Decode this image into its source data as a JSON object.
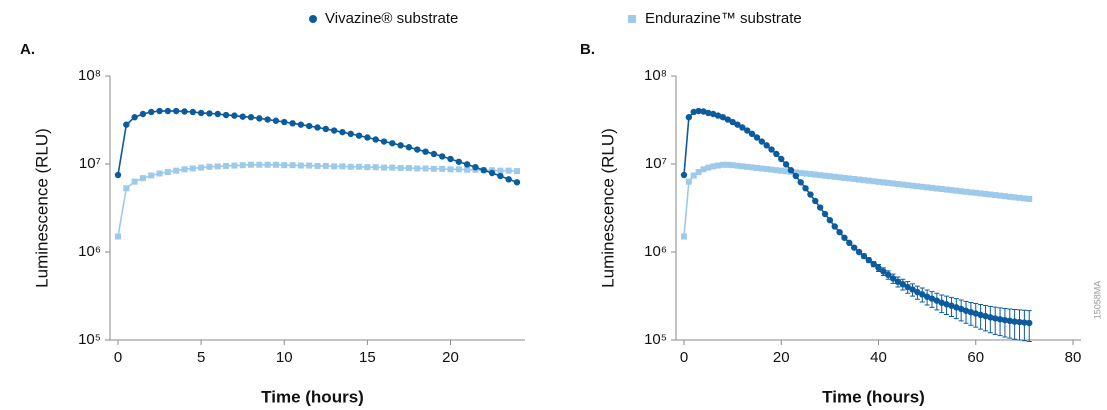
{
  "figure_code": "15058MA",
  "chart_data": [
    {
      "type": "line",
      "panel_label": "A.",
      "y_label": "Luminescence (RLU)",
      "x_label": "Time (hours)",
      "log_scale": true,
      "xlim": [
        0,
        24
      ],
      "xticks": [
        0,
        5,
        10,
        15,
        20
      ],
      "ylim": [
        100000,
        100000000
      ],
      "yticks": [
        {
          "value": 100000,
          "label": "10⁵"
        },
        {
          "value": 1000000,
          "label": "10⁶"
        },
        {
          "value": 10000000,
          "label": "10⁷"
        },
        {
          "value": 100000000,
          "label": "10⁸"
        }
      ],
      "x": [
        0,
        0.5,
        1,
        1.5,
        2,
        2.5,
        3,
        3.5,
        4,
        4.5,
        5,
        5.5,
        6,
        6.5,
        7,
        7.5,
        8,
        8.5,
        9,
        9.5,
        10,
        10.5,
        11,
        11.5,
        12,
        12.5,
        13,
        13.5,
        14,
        14.5,
        15,
        15.5,
        16,
        16.5,
        17,
        17.5,
        18,
        18.5,
        19,
        19.5,
        20,
        20.5,
        21,
        21.5,
        22,
        22.5,
        23,
        23.5,
        24
      ],
      "series": [
        {
          "name": "Vivazine® substrate",
          "color": "#0b5b9e",
          "marker": "circle",
          "values": [
            7500000.0,
            28000000.0,
            34000000.0,
            37000000.0,
            39000000.0,
            40000000.0,
            40000000.0,
            40000000.0,
            39500000.0,
            39000000.0,
            38000000.0,
            37500000.0,
            37000000.0,
            36000000.0,
            35500000.0,
            34500000.0,
            34000000.0,
            33000000.0,
            32000000.0,
            31000000.0,
            30000000.0,
            29000000.0,
            28000000.0,
            27000000.0,
            26000000.0,
            25000000.0,
            24000000.0,
            23000000.0,
            22000000.0,
            21000000.0,
            20000000.0,
            19000000.0,
            18000000.0,
            17200000.0,
            16300000.0,
            15500000.0,
            14600000.0,
            13800000.0,
            13000000.0,
            12200000.0,
            11400000.0,
            10600000.0,
            9900000.0,
            9200000.0,
            8500000.0,
            7900000.0,
            7300000.0,
            6700000.0,
            6200000.0
          ]
        },
        {
          "name": "Endurazine™ substrate",
          "color": "#9dc9ea",
          "marker": "square",
          "values": [
            1500000.0,
            5300000.0,
            6300000.0,
            6900000.0,
            7400000.0,
            7800000.0,
            8100000.0,
            8400000.0,
            8700000.0,
            8900000.0,
            9100000.0,
            9300000.0,
            9400000.0,
            9500000.0,
            9600000.0,
            9700000.0,
            9800000.0,
            9800000.0,
            9800000.0,
            9800000.0,
            9700000.0,
            9700000.0,
            9600000.0,
            9600000.0,
            9500000.0,
            9500000.0,
            9400000.0,
            9400000.0,
            9300000.0,
            9300000.0,
            9200000.0,
            9200000.0,
            9100000.0,
            9100000.0,
            9000000.0,
            9000000.0,
            8900000.0,
            8900000.0,
            8800000.0,
            8800000.0,
            8700000.0,
            8700000.0,
            8600000.0,
            8600000.0,
            8500000.0,
            8500000.0,
            8400000.0,
            8400000.0,
            8300000.0
          ]
        }
      ]
    },
    {
      "type": "line",
      "panel_label": "B.",
      "y_label": "Luminescence (RLU)",
      "x_label": "Time (hours)",
      "log_scale": true,
      "xlim": [
        0,
        80
      ],
      "xticks": [
        0,
        20,
        40,
        60,
        80
      ],
      "ylim": [
        100000,
        100000000
      ],
      "yticks": [
        {
          "value": 100000,
          "label": "10⁵"
        },
        {
          "value": 1000000,
          "label": "10⁶"
        },
        {
          "value": 10000000,
          "label": "10⁷"
        },
        {
          "value": 100000000,
          "label": "10⁸"
        }
      ],
      "x": [
        0,
        1,
        2,
        3,
        4,
        5,
        6,
        7,
        8,
        9,
        10,
        11,
        12,
        13,
        14,
        15,
        16,
        17,
        18,
        19,
        20,
        21,
        22,
        23,
        24,
        25,
        26,
        27,
        28,
        29,
        30,
        31,
        32,
        33,
        34,
        35,
        36,
        37,
        38,
        39,
        40,
        41,
        42,
        43,
        44,
        45,
        46,
        47,
        48,
        49,
        50,
        51,
        52,
        53,
        54,
        55,
        56,
        57,
        58,
        59,
        60,
        61,
        62,
        63,
        64,
        65,
        66,
        67,
        68,
        69,
        70,
        71
      ],
      "series": [
        {
          "color": "#0b5b9e",
          "marker": "circle",
          "values": [
            7500000.0,
            34000000.0,
            39000000.0,
            40000000.0,
            39500000.0,
            38000000.0,
            37000000.0,
            35500000.0,
            34000000.0,
            32000000.0,
            30000000.0,
            28000000.0,
            26000000.0,
            24000000.0,
            22000000.0,
            20000000.0,
            18000000.0,
            16300000.0,
            14600000.0,
            13000000.0,
            11400000.0,
            9900000.0,
            8500000.0,
            7300000.0,
            6200000.0,
            5300000.0,
            4500000.0,
            3800000.0,
            3200000.0,
            2700000.0,
            2300000.0,
            1950000.0,
            1680000.0,
            1450000.0,
            1270000.0,
            1120000.0,
            1000000.0,
            900000.0,
            810000.0,
            730000.0,
            660000.0,
            600000.0,
            550000.0,
            500000.0,
            460000.0,
            430000.0,
            400000.0,
            375000.0,
            350000.0,
            330000.0,
            310000.0,
            295000.0,
            280000.0,
            265000.0,
            255000.0,
            245000.0,
            235000.0,
            225000.0,
            215000.0,
            207000.0,
            200000.0,
            193000.0,
            187000.0,
            181000.0,
            176000.0,
            172000.0,
            168000.0,
            165000.0,
            162000.0,
            160000.0,
            158000.0,
            156000.0
          ],
          "errors": [
            null,
            null,
            null,
            null,
            null,
            null,
            null,
            null,
            null,
            null,
            null,
            null,
            null,
            null,
            null,
            null,
            null,
            null,
            null,
            null,
            null,
            null,
            null,
            null,
            null,
            null,
            null,
            null,
            null,
            null,
            null,
            null,
            null,
            null,
            null,
            null,
            50000.0,
            50000.0,
            50000.0,
            50000.0,
            60000.0,
            60000.0,
            60000.0,
            60000.0,
            60000.0,
            60000.0,
            60000.0,
            60000.0,
            60000.0,
            60000.0,
            60000.0,
            60000.0,
            60000.0,
            60000.0,
            60000.0,
            60000.0,
            60000.0,
            60000.0,
            60000.0,
            60000.0,
            60000.0,
            60000.0,
            60000.0,
            60000.0,
            60000.0,
            60000.0,
            60000.0,
            60000.0,
            60000.0,
            60000.0,
            60000.0,
            60000.0
          ]
        },
        {
          "color": "#9dc9ea",
          "marker": "square",
          "values": [
            1500000.0,
            6300000.0,
            7400000.0,
            8100000.0,
            8700000.0,
            9100000.0,
            9400000.0,
            9600000.0,
            9800000.0,
            9800000.0,
            9700000.0,
            9560000.0,
            9420000.0,
            9290000.0,
            9150000.0,
            9020000.0,
            8890000.0,
            8760000.0,
            8640000.0,
            8510000.0,
            8390000.0,
            8270000.0,
            8150000.0,
            8030000.0,
            7920000.0,
            7800000.0,
            7690000.0,
            7580000.0,
            7470000.0,
            7360000.0,
            7260000.0,
            7150000.0,
            7050000.0,
            6950000.0,
            6850000.0,
            6750000.0,
            6650000.0,
            6560000.0,
            6460000.0,
            6370000.0,
            6280000.0,
            6190000.0,
            6100000.0,
            6010000.0,
            5920000.0,
            5840000.0,
            5750000.0,
            5670000.0,
            5590000.0,
            5510000.0,
            5430000.0,
            5350000.0,
            5270000.0,
            5200000.0,
            5120000.0,
            5050000.0,
            4980000.0,
            4900000.0,
            4830000.0,
            4760000.0,
            4700000.0,
            4630000.0,
            4560000.0,
            4500000.0,
            4430000.0,
            4370000.0,
            4310000.0,
            4240000.0,
            4180000.0,
            4120000.0,
            4060000.0,
            4000000.0
          ]
        }
      ]
    }
  ]
}
